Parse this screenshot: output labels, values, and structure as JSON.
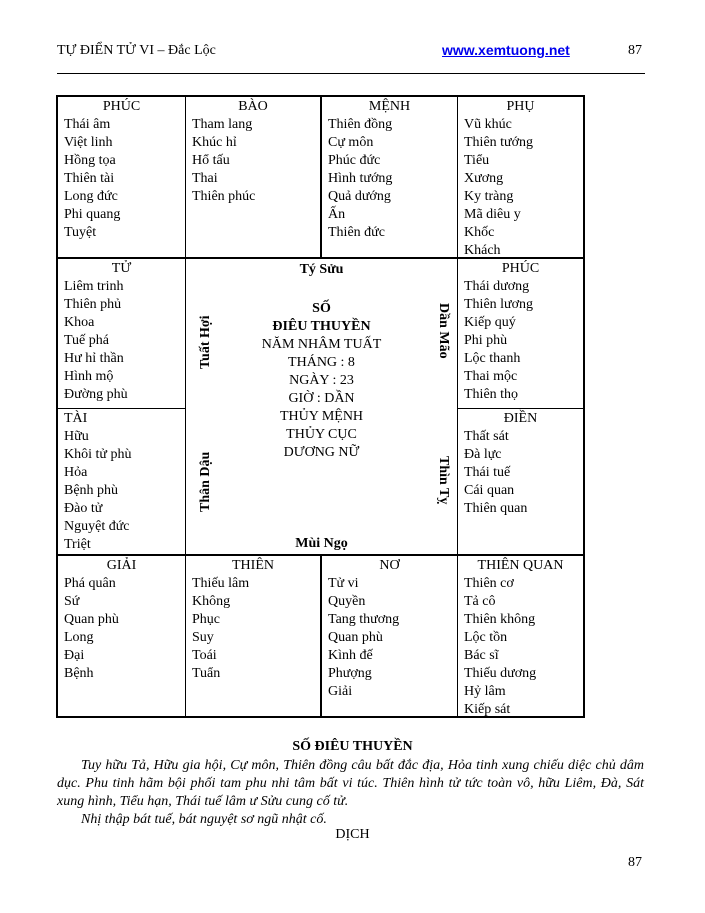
{
  "header": {
    "title": "TỰ ĐIỂN TỬ VI – Đắc Lộc",
    "link": "www.xemtuong.net",
    "page": "87"
  },
  "chart": {
    "cells": [
      {
        "title": "PHÚC",
        "items": [
          "Thái âm",
          "Việt linh",
          "Hồng tọa",
          "Thiên tài",
          "Long đức",
          "Phi quang",
          "Tuyệt"
        ]
      },
      {
        "title": "BÀO",
        "items": [
          "Tham lang",
          "Khúc hỉ",
          "Hổ tấu",
          "Thai",
          "Thiên phúc"
        ]
      },
      {
        "title": "MỆNH",
        "items": [
          "Thiên đồng",
          "Cự môn",
          "Phúc đức",
          "Hình tướng",
          "Quả dướng",
          "Ấn",
          "Thiên đức"
        ]
      },
      {
        "title": "PHỤ",
        "items": [
          "Vũ khúc",
          "Thiên tướng",
          "Tiểu",
          "Xương",
          "Ky tràng",
          "Mã diêu y",
          "Khốc",
          "Khách"
        ]
      },
      {
        "title": "TỬ",
        "items": [
          "Liêm trinh",
          "Thiên phủ",
          "Khoa",
          "Tuế phá",
          "Hư hỉ thần",
          "Hình mộ",
          "Đường phù"
        ]
      },
      {
        "title": "PHÚC",
        "items": [
          "Thái dương",
          "Thiên lương",
          "Kiếp quý",
          "Phi phù",
          "Lộc thanh",
          "Thai mộc",
          "Thiên thọ"
        ]
      },
      {
        "title": "TÀI",
        "items": [
          "Hữu",
          "Khôi tử phù",
          "Hỏa",
          "Bệnh phù",
          "Đào tử",
          "Nguyệt đức",
          "Triệt"
        ]
      },
      {
        "title": "ĐIỀN",
        "items": [
          "Thất sát",
          "Đà lực",
          "Thái tuế",
          "Cái quan",
          "Thiên quan"
        ]
      },
      {
        "title": "GIẢI",
        "items": [
          "Phá quân",
          "Sứ",
          "Quan phù",
          "Long",
          "Đại",
          "Bệnh"
        ]
      },
      {
        "title": "THIÊN",
        "items": [
          "Thiếu lâm",
          "Không",
          "Phục",
          "Suy",
          "Toái",
          "Tuẩn"
        ]
      },
      {
        "title": "NƠ",
        "items": [
          "Tử vi",
          "Quyền",
          "Tang thương",
          "Quan phù",
          "Kình đế",
          "Phượng",
          "Giải"
        ]
      },
      {
        "title": "THIÊN QUAN",
        "items": [
          "Thiên cơ",
          "Tả cô",
          "Thiên không",
          "Lộc tồn",
          "Bác sĩ",
          "Thiếu dương",
          "Hỷ lâm",
          "Kiếp sát"
        ]
      }
    ],
    "center": {
      "top": "Tý Sửu",
      "bottom": "Mùi Ngọ",
      "so": "SỐ",
      "name": "ĐIÊU THUYỀN",
      "lines": [
        "NĂM NHÂM TUẤT",
        "THÁNG : 8",
        "NGÀY : 23",
        "GIỜ : DẦN",
        "THỦY MỆNH",
        "THỦY CỤC",
        "DƯƠNG NỮ"
      ]
    },
    "sides": {
      "left_top": "Tuất  Hợi",
      "left_bottom": "Thân Dậu",
      "right_top": "Dần Mão",
      "right_bottom": "Thìn Tỵ"
    }
  },
  "body": {
    "title": "SỐ ĐIÊU THUYỀN",
    "para1": "Tuy hữu Tả, Hữu gia hội, Cự môn, Thiên đồng câu bất đắc địa, Hỏa tinh xung chiếu diệc chủ dâm dục. Phu tinh hãm bội phối tam phu nhi tâm bất vi túc. Thiên hình tử tức toàn vô, hữu Liêm, Đà, Sát xung hình, Tiểu hạn, Thái tuế lâm ư Sửu cung cố tử.",
    "para2": "Nhị thập bát tuế, bát nguyệt sơ ngũ nhật cố.",
    "dich": "DỊCH"
  },
  "footer": {
    "page": "87"
  }
}
